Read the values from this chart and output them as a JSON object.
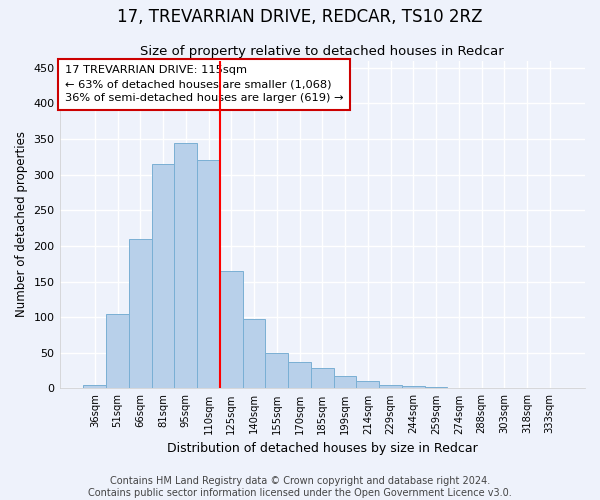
{
  "title": "17, TREVARRIAN DRIVE, REDCAR, TS10 2RZ",
  "subtitle": "Size of property relative to detached houses in Redcar",
  "xlabel": "Distribution of detached houses by size in Redcar",
  "ylabel": "Number of detached properties",
  "categories": [
    "36sqm",
    "51sqm",
    "66sqm",
    "81sqm",
    "95sqm",
    "110sqm",
    "125sqm",
    "140sqm",
    "155sqm",
    "170sqm",
    "185sqm",
    "199sqm",
    "214sqm",
    "229sqm",
    "244sqm",
    "259sqm",
    "274sqm",
    "288sqm",
    "303sqm",
    "318sqm",
    "333sqm"
  ],
  "values": [
    5,
    105,
    210,
    315,
    345,
    320,
    165,
    97,
    50,
    37,
    28,
    17,
    10,
    5,
    3,
    2,
    1,
    1,
    1,
    1,
    1
  ],
  "bar_color": "#b8d0ea",
  "bar_edge_color": "#7aafd4",
  "red_line_x": 6.0,
  "annotation_text": "17 TREVARRIAN DRIVE: 115sqm\n← 63% of detached houses are smaller (1,068)\n36% of semi-detached houses are larger (619) →",
  "annotation_box_color": "#ffffff",
  "annotation_box_edge_color": "#cc0000",
  "ylim": [
    0,
    460
  ],
  "yticks": [
    0,
    50,
    100,
    150,
    200,
    250,
    300,
    350,
    400,
    450
  ],
  "footer_line1": "Contains HM Land Registry data © Crown copyright and database right 2024.",
  "footer_line2": "Contains public sector information licensed under the Open Government Licence v3.0.",
  "background_color": "#eef2fb",
  "grid_color": "#ffffff",
  "title_fontsize": 12,
  "subtitle_fontsize": 9.5,
  "footer_fontsize": 7.0
}
